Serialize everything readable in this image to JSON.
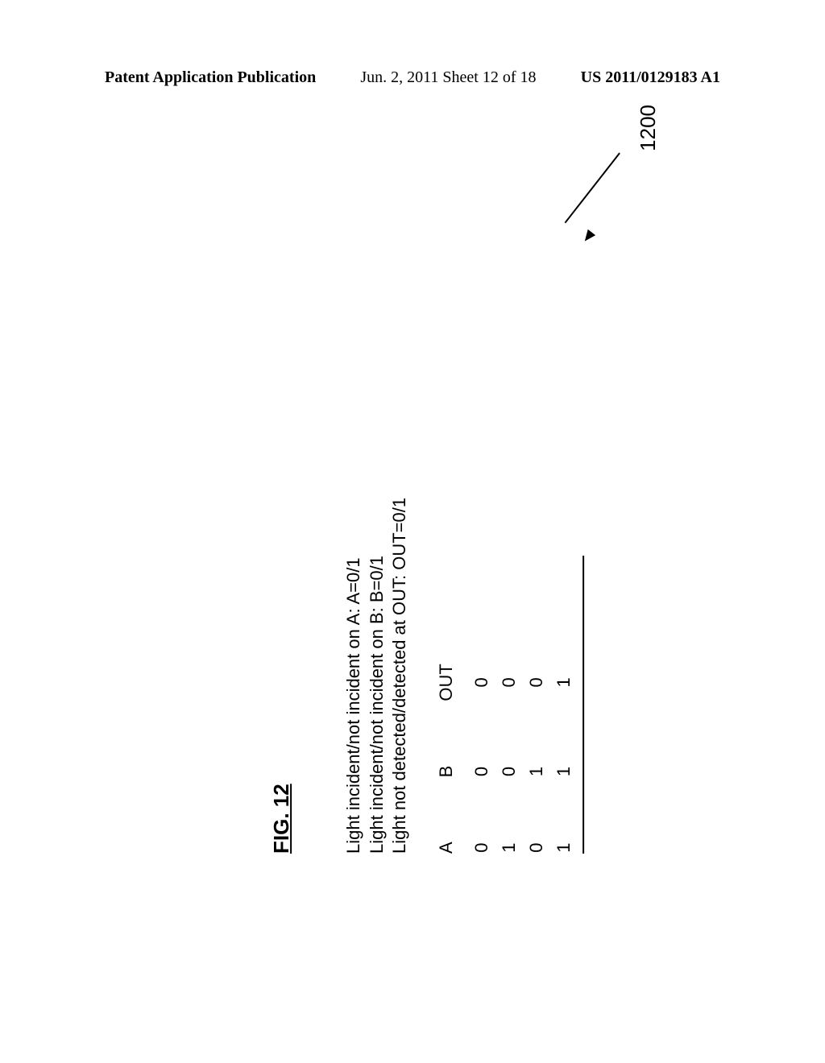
{
  "header": {
    "left": "Patent Application Publication",
    "center": "Jun. 2, 2011  Sheet 12 of 18",
    "right": "US 2011/0129183 A1"
  },
  "figure": {
    "label": "FIG. 12",
    "legend": {
      "line1": "Light incident/not incident on A:  A=0/1",
      "line2": "Light incident/not incident on B:  B=0/1",
      "line3": "Light not detected/detected at OUT:  OUT=0/1"
    },
    "table": {
      "columns": [
        "A",
        "B",
        "OUT"
      ],
      "rows": [
        [
          "0",
          "0",
          "0"
        ],
        [
          "1",
          "0",
          "0"
        ],
        [
          "0",
          "1",
          "0"
        ],
        [
          "1",
          "1",
          "1"
        ]
      ]
    },
    "ref_number": "1200"
  }
}
